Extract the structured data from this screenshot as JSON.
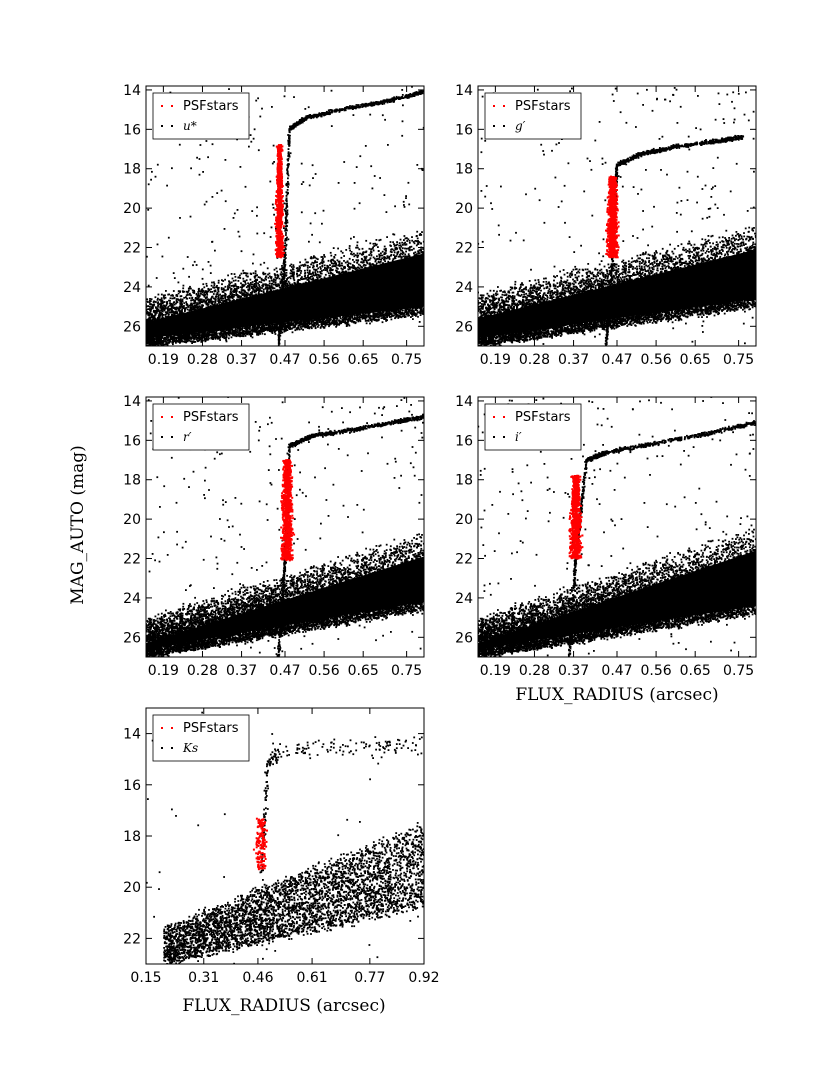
{
  "figure": {
    "ylabel": "MAG_AUTO (mag)",
    "xlabel": "FLUX_RADIUS (arcsec)"
  },
  "colors": {
    "stars": "#ff0000",
    "sources": "#000000",
    "axes": "#000000"
  },
  "chart_data": [
    {
      "id": "u",
      "type": "scatter",
      "xlim": [
        0.15,
        0.79
      ],
      "ylim": [
        27,
        13.8
      ],
      "xticks": [
        0.19,
        0.28,
        0.37,
        0.47,
        0.56,
        0.65,
        0.75
      ],
      "xtick_labels": [
        "0.19",
        "0.28",
        "0.37",
        "0.47",
        "0.56",
        "0.65",
        "0.75"
      ],
      "yticks": [
        14,
        16,
        18,
        20,
        22,
        24,
        26
      ],
      "ytick_labels": [
        "14",
        "16",
        "18",
        "20",
        "22",
        "24",
        "26"
      ],
      "legend": {
        "placement": "top-left",
        "entries": [
          "PSFstars",
          "u*"
        ]
      },
      "series": [
        {
          "name": "PSFstars",
          "color": "#ff0000",
          "region": {
            "x": [
              0.445,
              0.47
            ],
            "y": [
              16.8,
              22.5
            ]
          }
        },
        {
          "name": "u*",
          "color": "#000000",
          "stellar_locus": {
            "x": [
              0.455,
              0.47,
              0.48,
              0.52,
              0.6,
              0.7,
              0.79
            ],
            "y": [
              27,
              22.5,
              16.0,
              15.4,
              15.0,
              14.6,
              14.1
            ]
          },
          "galaxy_cloud": {
            "x": [
              0.15,
              0.79
            ],
            "y_lower": [
              27.0,
              25.4
            ],
            "y_upper": [
              24.5,
              21.0
            ]
          }
        }
      ]
    },
    {
      "id": "g",
      "type": "scatter",
      "xlim": [
        0.15,
        0.79
      ],
      "ylim": [
        27,
        13.8
      ],
      "xticks": [
        0.19,
        0.28,
        0.37,
        0.47,
        0.56,
        0.65,
        0.75
      ],
      "xtick_labels": [
        "0.19",
        "0.28",
        "0.37",
        "0.47",
        "0.56",
        "0.65",
        "0.75"
      ],
      "yticks": [
        14,
        16,
        18,
        20,
        22,
        24,
        26
      ],
      "ytick_labels": [
        "14",
        "16",
        "18",
        "20",
        "22",
        "24",
        "26"
      ],
      "legend": {
        "placement": "top-left",
        "entries": [
          "PSFstars",
          "g′"
        ]
      },
      "series": [
        {
          "name": "PSFstars",
          "color": "#ff0000",
          "region": {
            "x": [
              0.44,
              0.48
            ],
            "y": [
              18.4,
              22.5
            ]
          }
        },
        {
          "name": "g′",
          "color": "#000000",
          "stellar_locus": {
            "x": [
              0.445,
              0.46,
              0.47,
              0.52,
              0.6,
              0.7,
              0.76
            ],
            "y": [
              27,
              22.5,
              17.8,
              17.3,
              16.9,
              16.6,
              16.4
            ]
          },
          "galaxy_cloud": {
            "x": [
              0.15,
              0.79
            ],
            "y_lower": [
              27.0,
              25.0
            ],
            "y_upper": [
              24.3,
              20.8
            ]
          }
        }
      ]
    },
    {
      "id": "r",
      "type": "scatter",
      "xlim": [
        0.15,
        0.79
      ],
      "ylim": [
        27,
        13.8
      ],
      "xticks": [
        0.19,
        0.28,
        0.37,
        0.47,
        0.56,
        0.65,
        0.75
      ],
      "xtick_labels": [
        "0.19",
        "0.28",
        "0.37",
        "0.47",
        "0.56",
        "0.65",
        "0.75"
      ],
      "yticks": [
        14,
        16,
        18,
        20,
        22,
        24,
        26
      ],
      "ytick_labels": [
        "14",
        "16",
        "18",
        "20",
        "22",
        "24",
        "26"
      ],
      "legend": {
        "placement": "top-left",
        "entries": [
          "PSFstars",
          "r′"
        ]
      },
      "series": [
        {
          "name": "PSFstars",
          "color": "#ff0000",
          "region": {
            "x": [
              0.455,
              0.495
            ],
            "y": [
              17.0,
              22.1
            ]
          }
        },
        {
          "name": "r′",
          "color": "#000000",
          "stellar_locus": {
            "x": [
              0.455,
              0.47,
              0.48,
              0.53,
              0.62,
              0.72,
              0.79
            ],
            "y": [
              27,
              22.1,
              16.3,
              15.8,
              15.5,
              15.1,
              14.8
            ]
          },
          "galaxy_cloud": {
            "x": [
              0.15,
              0.79
            ],
            "y_lower": [
              27.0,
              24.6
            ],
            "y_upper": [
              25.0,
              20.6
            ]
          }
        }
      ]
    },
    {
      "id": "i",
      "type": "scatter",
      "xlim": [
        0.15,
        0.79
      ],
      "ylim": [
        27,
        13.8
      ],
      "xticks": [
        0.19,
        0.28,
        0.37,
        0.47,
        0.56,
        0.65,
        0.75
      ],
      "xtick_labels": [
        "0.19",
        "0.28",
        "0.37",
        "0.47",
        "0.56",
        "0.65",
        "0.75"
      ],
      "yticks": [
        14,
        16,
        18,
        20,
        22,
        24,
        26
      ],
      "ytick_labels": [
        "14",
        "16",
        "18",
        "20",
        "22",
        "24",
        "26"
      ],
      "legend": {
        "placement": "top-left",
        "entries": [
          "PSFstars",
          "i′"
        ]
      },
      "series": [
        {
          "name": "PSFstars",
          "color": "#ff0000",
          "region": {
            "x": [
              0.355,
              0.395
            ],
            "y": [
              17.8,
              22.0
            ]
          }
        },
        {
          "name": "i′",
          "color": "#000000",
          "stellar_locus": {
            "x": [
              0.36,
              0.375,
              0.4,
              0.45,
              0.55,
              0.67,
              0.79
            ],
            "y": [
              27,
              22.0,
              17.0,
              16.6,
              16.2,
              15.7,
              15.1
            ]
          },
          "galaxy_cloud": {
            "x": [
              0.15,
              0.79
            ],
            "y_lower": [
              27.0,
              24.8
            ],
            "y_upper": [
              25.0,
              20.3
            ]
          }
        }
      ]
    },
    {
      "id": "Ks",
      "type": "scatter",
      "xlim": [
        0.15,
        0.92
      ],
      "ylim": [
        23.0,
        13.0
      ],
      "xticks": [
        0.15,
        0.31,
        0.46,
        0.61,
        0.77,
        0.92
      ],
      "xtick_labels": [
        "0.15",
        "0.31",
        "0.46",
        "0.61",
        "0.77",
        "0.92"
      ],
      "yticks": [
        14,
        16,
        18,
        20,
        22
      ],
      "ytick_labels": [
        "14",
        "16",
        "18",
        "20",
        "22"
      ],
      "legend": {
        "placement": "top-left",
        "entries": [
          "PSFstars",
          "Ks"
        ]
      },
      "series": [
        {
          "name": "PSFstars",
          "color": "#ff0000",
          "region": {
            "x": [
              0.44,
              0.5
            ],
            "y": [
              17.3,
              19.3
            ]
          }
        },
        {
          "name": "Ks",
          "color": "#000000",
          "stellar_locus": {
            "x": [
              0.47,
              0.48,
              0.49,
              0.52,
              0.65,
              0.8,
              0.92
            ],
            "y": [
              19.5,
              17.0,
              15.0,
              14.7,
              14.6,
              14.5,
              14.4
            ]
          },
          "galaxy_cloud": {
            "x": [
              0.2,
              0.92
            ],
            "y_lower": [
              23.0,
              20.8
            ],
            "y_upper": [
              21.6,
              17.5
            ]
          }
        }
      ]
    }
  ]
}
